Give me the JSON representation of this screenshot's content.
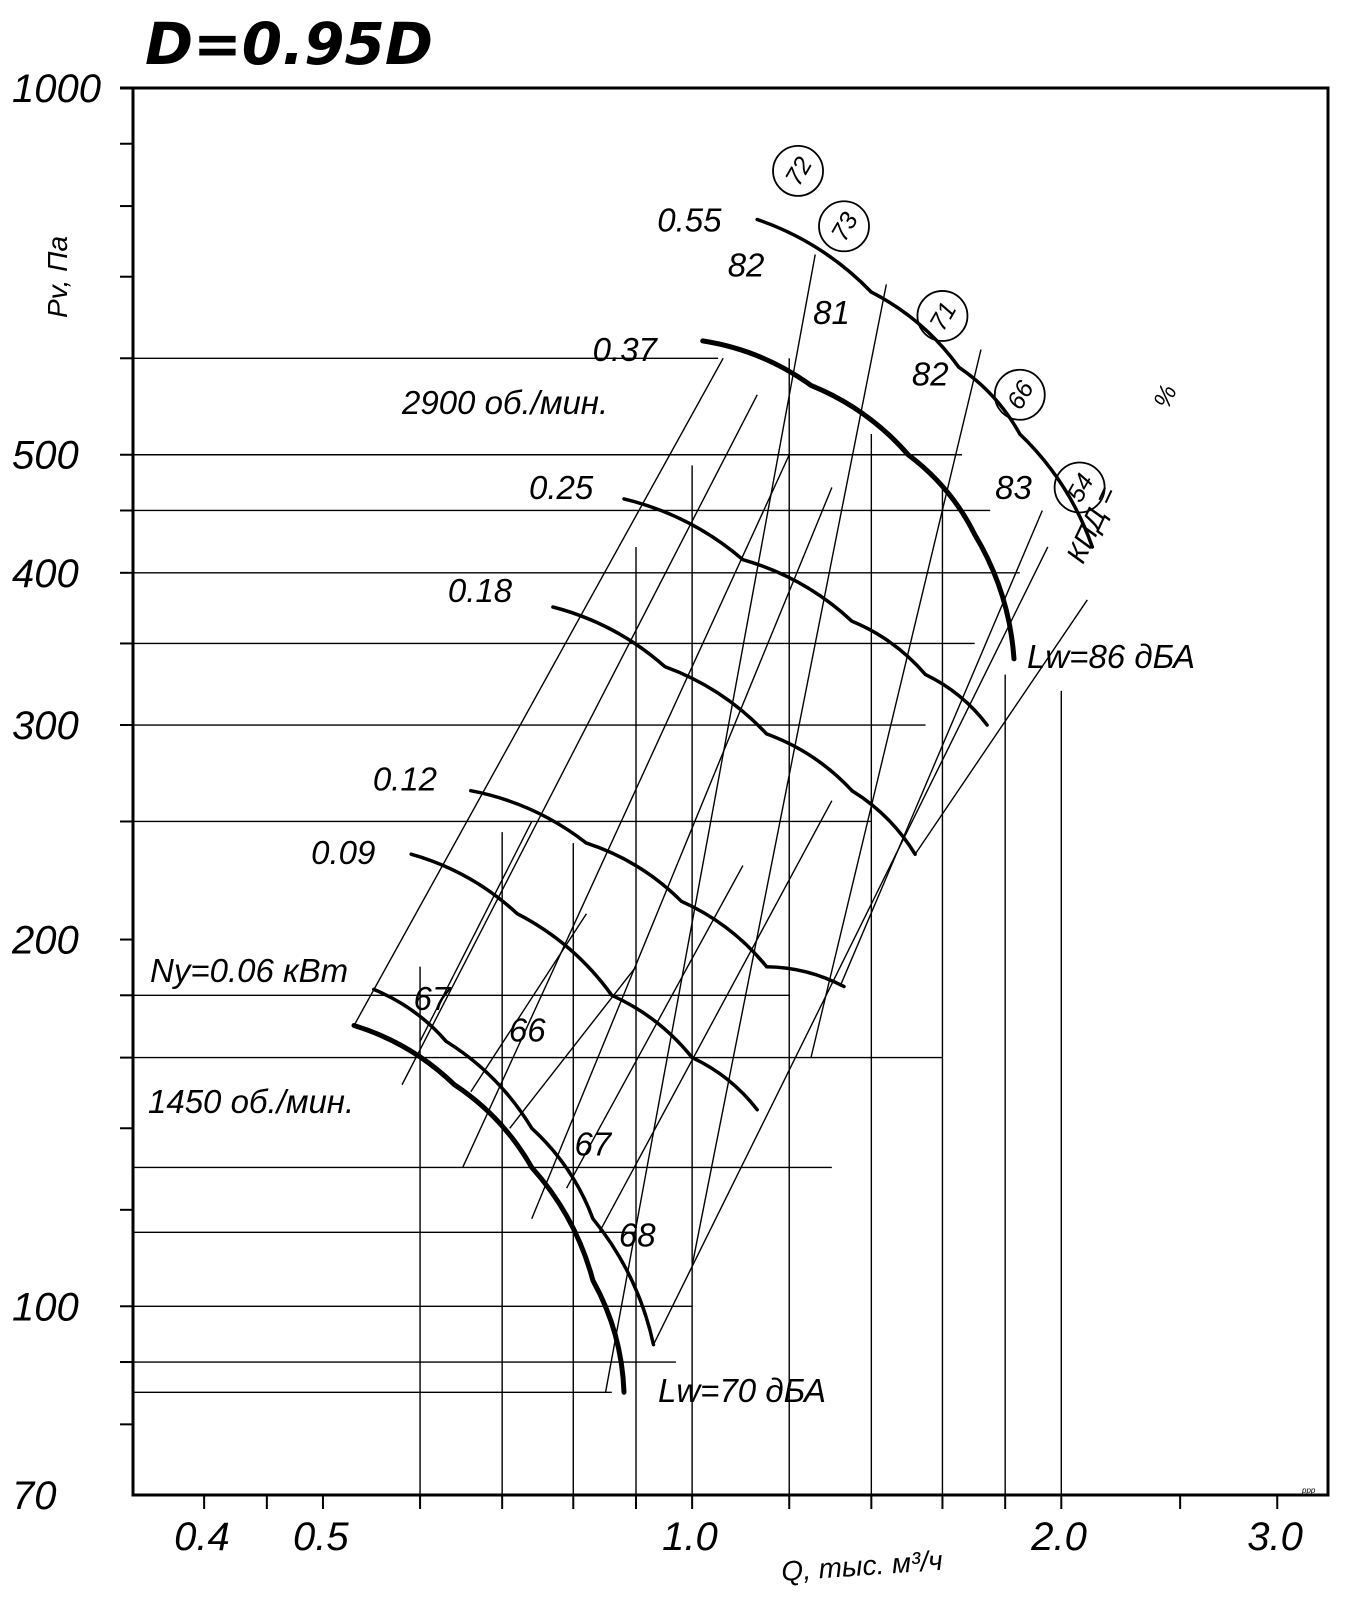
{
  "chart_data": {
    "type": "line",
    "title": "D=0.95D",
    "xlabel": "Q, тыс. м³/ч",
    "ylabel": "Pv, Па",
    "x_scale": "log",
    "y_scale": "log",
    "xlim": [
      0.35,
      3.3
    ],
    "ylim": [
      70,
      1000
    ],
    "x_ticks": [
      "0.4",
      "0.5",
      "1.0",
      "2.0",
      "3.0"
    ],
    "y_ticks": [
      "1000",
      "500",
      "400",
      "300",
      "200",
      "100",
      "70"
    ],
    "speed_labels": [
      "2900 об./мин.",
      "1450 об./мин."
    ],
    "noise_labels": [
      "Lw=86 дБА",
      "Lw=70 дБА"
    ],
    "power_prefix": "Ny=0.06 кВт",
    "efficiency_label": "КПД =",
    "efficiency_unit": "%",
    "series": [
      {
        "name": "0.55",
        "x": [
          1.13,
          1.4,
          1.65,
          1.85,
          2.12
        ],
        "y": [
          780,
          680,
          590,
          520,
          420
        ]
      },
      {
        "name": "0.37",
        "x": [
          1.02,
          1.25,
          1.5,
          1.7,
          1.83
        ],
        "y": [
          620,
          570,
          500,
          430,
          340
        ]
      },
      {
        "name": "0.25",
        "x": [
          0.88,
          1.1,
          1.35,
          1.55,
          1.74
        ],
        "y": [
          460,
          410,
          365,
          330,
          300
        ]
      },
      {
        "name": "0.18",
        "x": [
          0.77,
          0.95,
          1.15,
          1.35,
          1.52
        ],
        "y": [
          375,
          335,
          295,
          265,
          235
        ]
      },
      {
        "name": "0.12",
        "x": [
          0.66,
          0.82,
          0.98,
          1.15,
          1.33
        ],
        "y": [
          265,
          240,
          215,
          190,
          183
        ]
      },
      {
        "name": "0.09",
        "x": [
          0.59,
          0.72,
          0.86,
          1.0,
          1.13
        ],
        "y": [
          235,
          210,
          180,
          160,
          145
        ]
      },
      {
        "name": "0.06",
        "x": [
          0.55,
          0.63,
          0.74,
          0.83,
          0.93
        ],
        "y": [
          182,
          165,
          140,
          118,
          93
        ]
      },
      {
        "name": "0.06 (1450)",
        "x": [
          0.53,
          0.64,
          0.74,
          0.83,
          0.88
        ],
        "y": [
          170,
          152,
          130,
          105,
          85
        ]
      }
    ],
    "efficiency_grid_values": [
      "82",
      "81",
      "82",
      "83",
      "67",
      "66",
      "67",
      "68"
    ],
    "efficiency_circle_values": [
      "72",
      "73",
      "71",
      "66",
      "54"
    ],
    "footnote": "ppp"
  }
}
